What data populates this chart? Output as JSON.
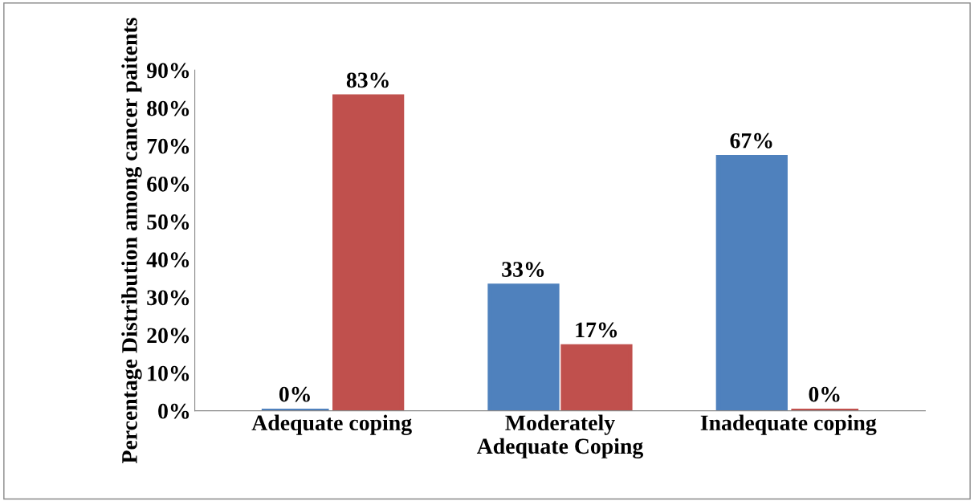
{
  "chart_data": {
    "type": "bar",
    "ylabel": "Percentage Distribution among cancer paitents",
    "categories": [
      "Adequate coping",
      "Moderately\nAdequate Coping",
      "Inadequate coping"
    ],
    "series": [
      {
        "color": "#4f81bd",
        "values": [
          0,
          33,
          67
        ],
        "value_labels": [
          "0%",
          "33%",
          "67%"
        ]
      },
      {
        "color": "#c0504d",
        "values": [
          83,
          17,
          0
        ],
        "value_labels": [
          "83%",
          "17%",
          "0%"
        ]
      }
    ],
    "ylim": [
      0,
      90
    ],
    "yticks": [
      {
        "value": 0,
        "label": "0%"
      },
      {
        "value": 10,
        "label": "10%"
      },
      {
        "value": 20,
        "label": "20%"
      },
      {
        "value": 30,
        "label": "30%"
      },
      {
        "value": 40,
        "label": "40%"
      },
      {
        "value": 50,
        "label": "50%"
      },
      {
        "value": 60,
        "label": "60%"
      },
      {
        "value": 70,
        "label": "70%"
      },
      {
        "value": 80,
        "label": "80%"
      },
      {
        "value": 90,
        "label": "90%"
      }
    ],
    "grid": false,
    "legend": false
  }
}
